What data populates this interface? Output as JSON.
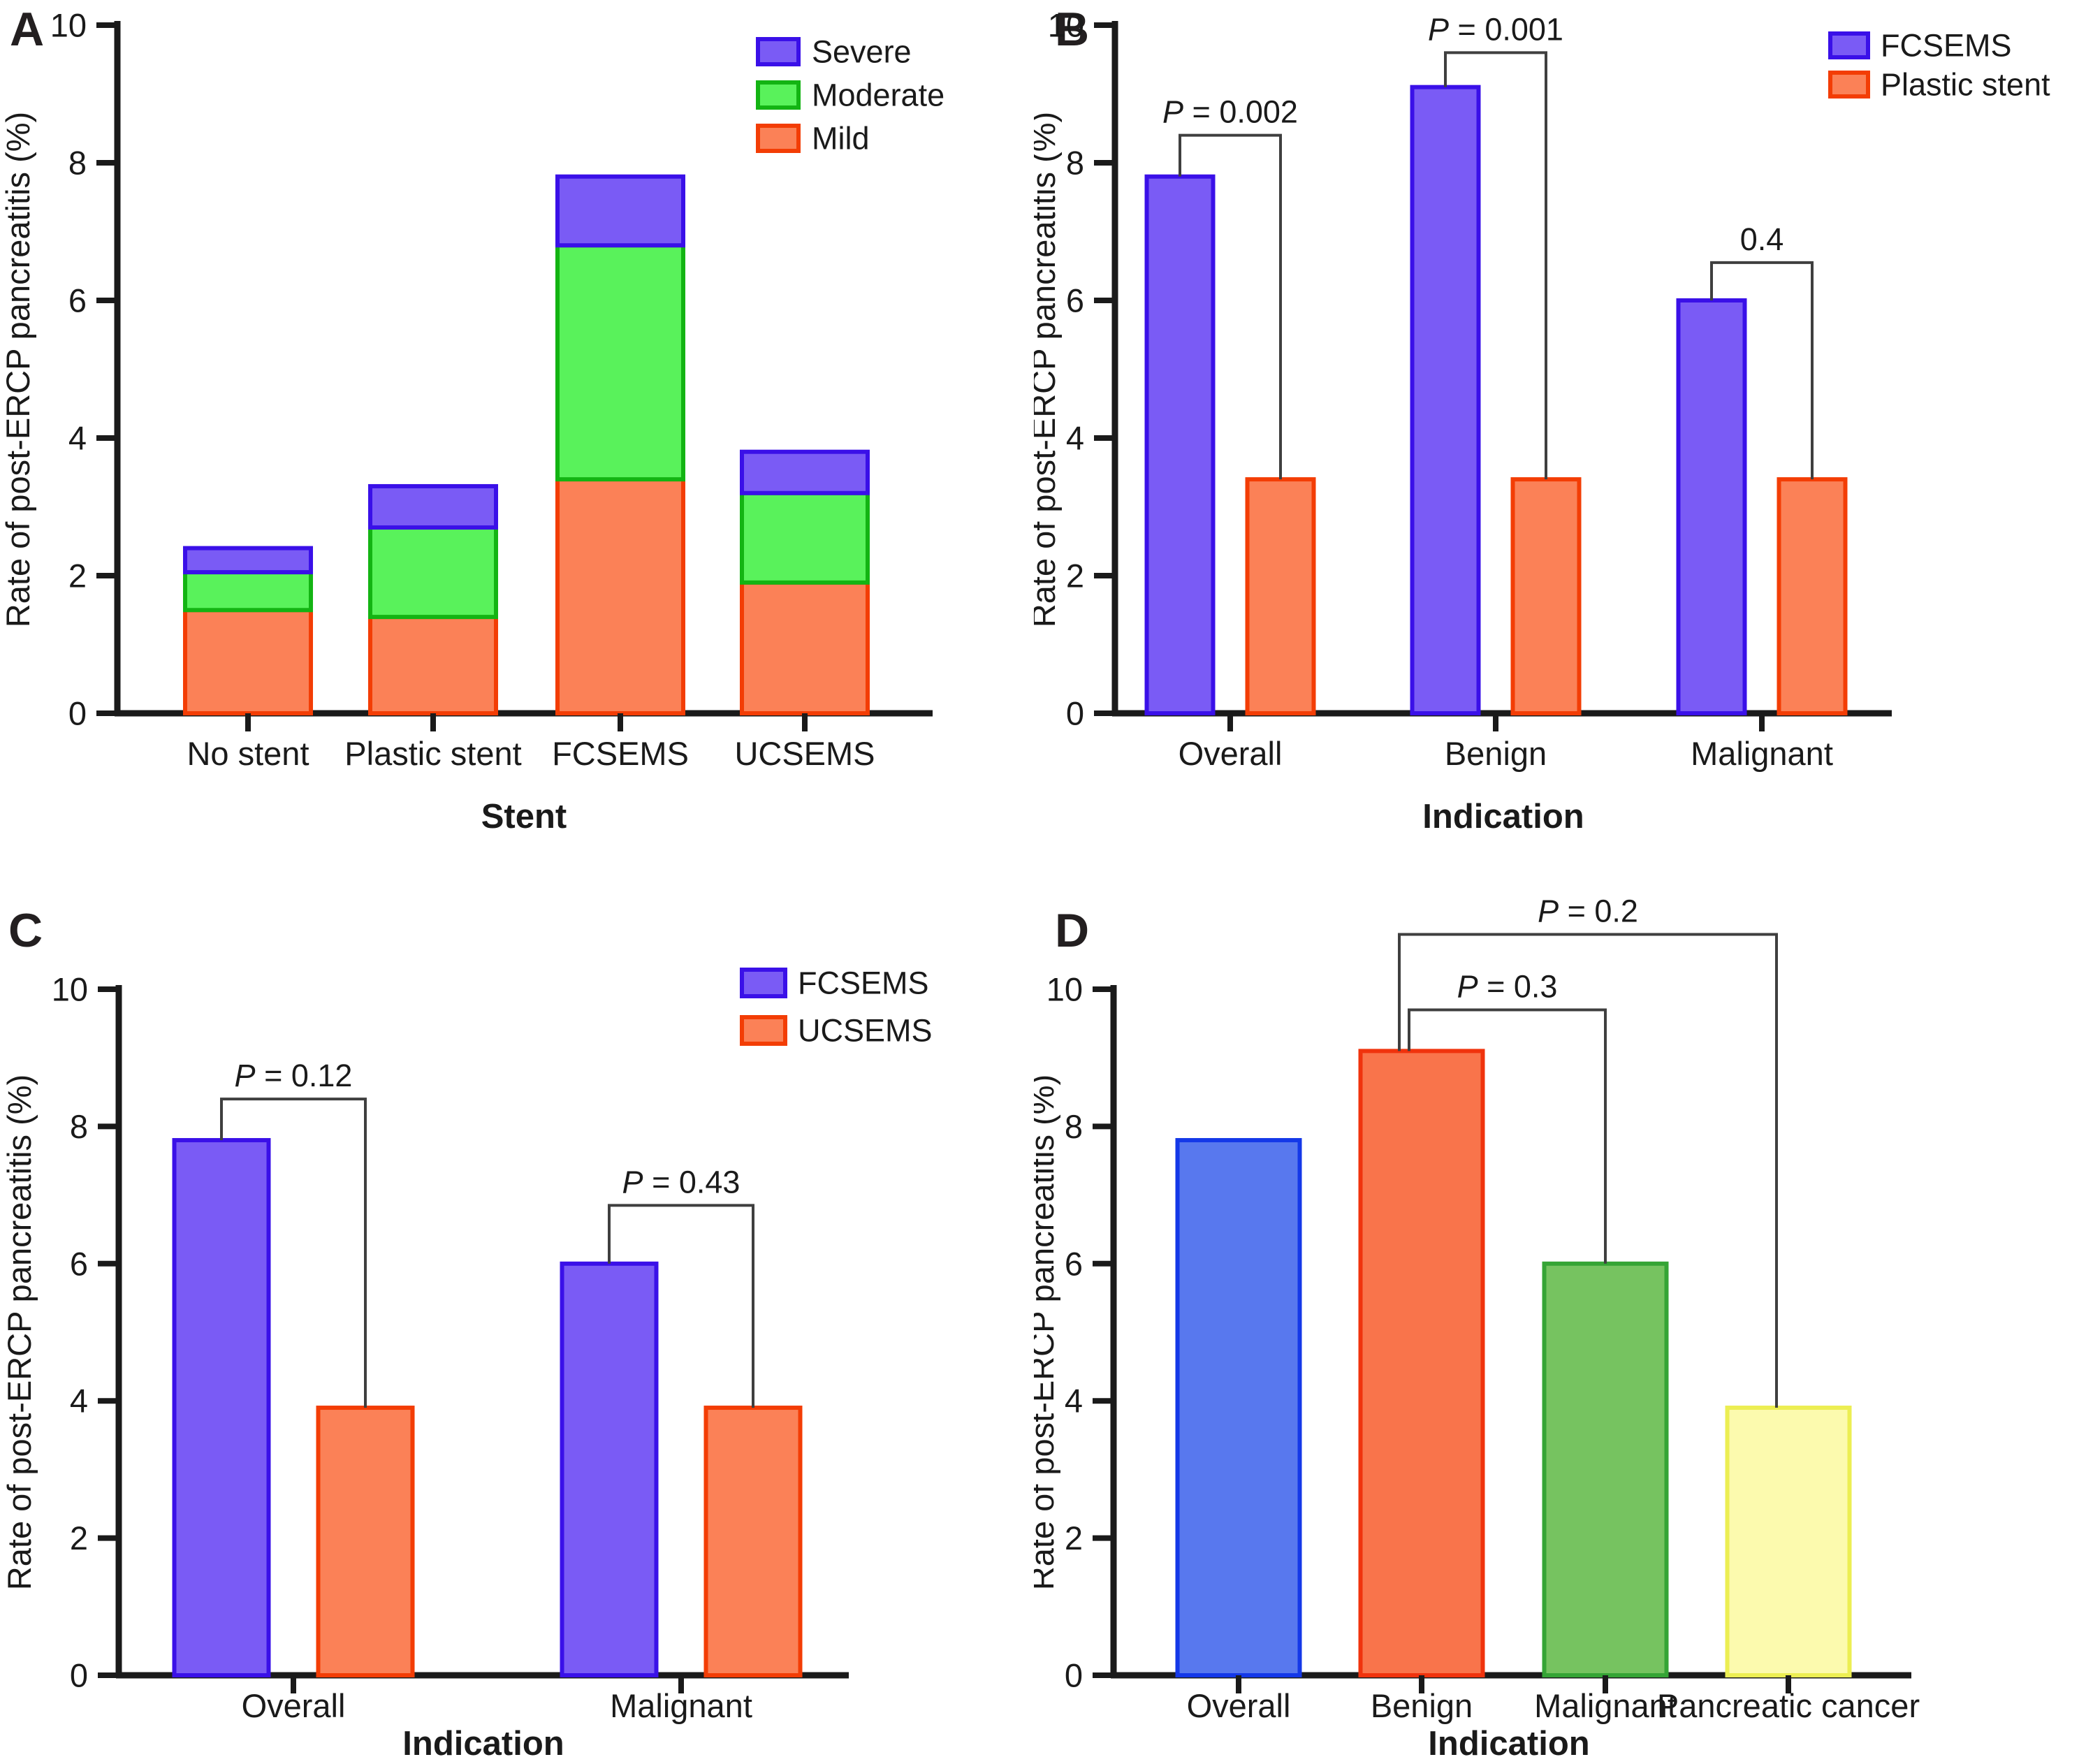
{
  "figure": {
    "description": "Four-panel bar figure of post-ERCP pancreatitis rates",
    "y_axis_label": "Rate of post-ERCP pancreatitis (%)"
  },
  "chart_data": [
    {
      "panel": "A",
      "type": "bar",
      "subtype": "stacked",
      "xlabel": "Stent",
      "ylabel": "Rate of post-ERCP pancreatitis (%)",
      "ylim": [
        0,
        10
      ],
      "yticks": [
        0,
        2,
        4,
        6,
        8,
        10
      ],
      "grid": false,
      "categories": [
        "No stent",
        "Plastic stent",
        "FCSEMS",
        "UCSEMS"
      ],
      "series": [
        {
          "name": "Mild",
          "fill": "#FB8157",
          "stroke": "#F33D05",
          "values": [
            1.5,
            1.4,
            3.4,
            1.9
          ]
        },
        {
          "name": "Moderate",
          "fill": "#59F25B",
          "stroke": "#13B413",
          "values": [
            0.55,
            1.3,
            3.4,
            1.3
          ]
        },
        {
          "name": "Severe",
          "fill": "#7A5BF5",
          "stroke": "#3A10E8",
          "values": [
            0.35,
            0.6,
            1.0,
            0.6
          ]
        }
      ],
      "stack_totals": [
        2.4,
        3.3,
        7.8,
        3.8
      ],
      "legend": {
        "position": "top-right",
        "order": [
          "Severe",
          "Moderate",
          "Mild"
        ]
      }
    },
    {
      "panel": "B",
      "type": "bar",
      "subtype": "grouped",
      "xlabel": "Indication",
      "ylabel": "Rate of post-ERCP pancreatitis (%)",
      "ylim": [
        0,
        10
      ],
      "yticks": [
        0,
        2,
        4,
        6,
        8,
        10
      ],
      "grid": false,
      "categories": [
        "Overall",
        "Benign",
        "Malignant"
      ],
      "series": [
        {
          "name": "FCSEMS",
          "fill": "#7A5BF5",
          "stroke": "#3A10E8",
          "values": [
            7.8,
            9.1,
            6.0
          ]
        },
        {
          "name": "Plastic stent",
          "fill": "#FB8157",
          "stroke": "#F33D05",
          "values": [
            3.4,
            3.4,
            3.4
          ]
        }
      ],
      "legend": {
        "position": "top-right",
        "order": [
          "FCSEMS",
          "Plastic stent"
        ]
      },
      "comparisons": [
        {
          "category": "Overall",
          "label": "P = 0.002",
          "bracket_top": 8.4
        },
        {
          "category": "Benign",
          "label": "P = 0.001",
          "bracket_top": 9.6
        },
        {
          "category": "Malignant",
          "label": "0.4",
          "bracket_top": 6.55
        }
      ]
    },
    {
      "panel": "C",
      "type": "bar",
      "subtype": "grouped",
      "xlabel": "Indication",
      "ylabel": "Rate of post-ERCP pancreatitis (%)",
      "ylim": [
        0,
        10
      ],
      "yticks": [
        0,
        2,
        4,
        6,
        8,
        10
      ],
      "grid": false,
      "categories": [
        "Overall",
        "Malignant"
      ],
      "series": [
        {
          "name": "FCSEMS",
          "fill": "#7A5BF5",
          "stroke": "#3A10E8",
          "values": [
            7.8,
            6.0
          ]
        },
        {
          "name": "UCSEMS",
          "fill": "#FB8157",
          "stroke": "#F33D05",
          "values": [
            3.9,
            3.9
          ]
        }
      ],
      "legend": {
        "position": "top-right",
        "order": [
          "FCSEMS",
          "UCSEMS"
        ]
      },
      "comparisons": [
        {
          "category": "Overall",
          "label": "P = 0.12",
          "bracket_top": 8.4
        },
        {
          "category": "Malignant",
          "label": "P = 0.43",
          "bracket_top": 6.85
        }
      ]
    },
    {
      "panel": "D",
      "type": "bar",
      "subtype": "single",
      "xlabel": "Indication",
      "ylabel": "Rate of post-ERCP pancreatitis (%)",
      "ylim": [
        0,
        10
      ],
      "yticks": [
        0,
        2,
        4,
        6,
        8,
        10
      ],
      "grid": false,
      "categories": [
        "Overall",
        "Benign",
        "Malignant",
        "Pancreatic cancer"
      ],
      "values": [
        7.8,
        9.1,
        6.0,
        3.9
      ],
      "bar_colors": [
        {
          "fill": "#5878EE",
          "stroke": "#1438E8"
        },
        {
          "fill": "#F9744B",
          "stroke": "#F0330D"
        },
        {
          "fill": "#76C360",
          "stroke": "#35A435"
        },
        {
          "fill": "#FCFAAE",
          "stroke": "#ECEE52"
        }
      ],
      "comparisons": [
        {
          "from": "Benign",
          "to": "Malignant",
          "label": "P = 0.3",
          "bracket_top": 9.7
        },
        {
          "from": "Benign",
          "to": "Pancreatic cancer",
          "label": "P = 0.2",
          "bracket_top": 10.8
        }
      ]
    }
  ]
}
